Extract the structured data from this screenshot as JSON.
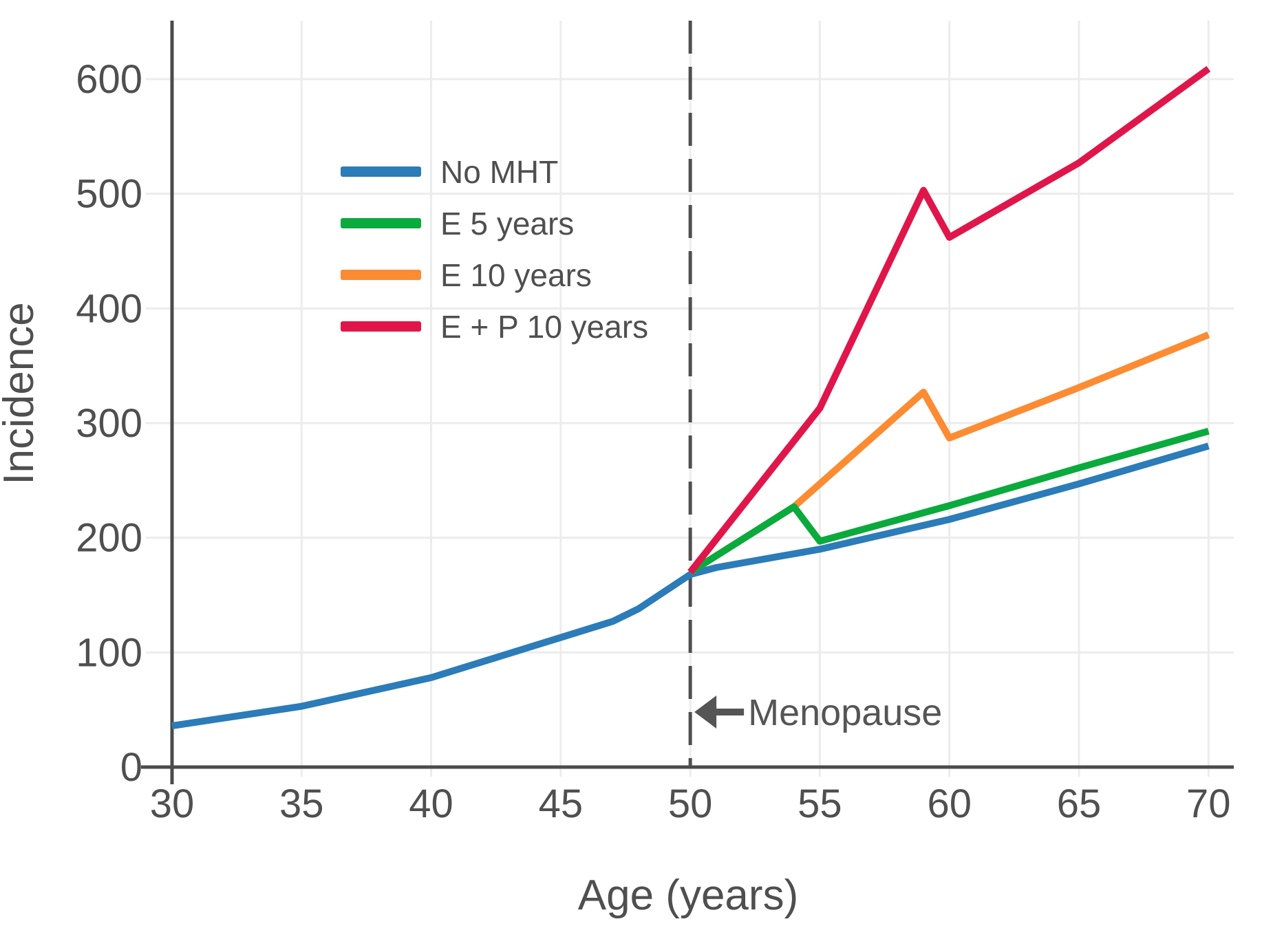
{
  "chart_data": {
    "type": "line",
    "title": "",
    "xlabel": "Age (years)",
    "ylabel": "Incidence",
    "xlim": [
      30,
      71
    ],
    "ylim": [
      0,
      651
    ],
    "x_ticks": [
      30,
      35,
      40,
      45,
      50,
      55,
      60,
      65,
      70
    ],
    "y_ticks": [
      0,
      100,
      200,
      300,
      400,
      500,
      600
    ],
    "grid": true,
    "legend_position": "upper-left-inside",
    "reference_line": {
      "x": 50,
      "style": "dashed",
      "color": "#4f4f4f"
    },
    "annotations": [
      {
        "label": "Menopause",
        "x": 50,
        "y": 48,
        "arrow": "left",
        "color": "#555555"
      }
    ],
    "series": [
      {
        "name": "No MHT",
        "color": "#2b7cb8",
        "points": [
          [
            30,
            36
          ],
          [
            35,
            53
          ],
          [
            40,
            78
          ],
          [
            45,
            113
          ],
          [
            47,
            127
          ],
          [
            48,
            138
          ],
          [
            49,
            153
          ],
          [
            50,
            168
          ],
          [
            51,
            174
          ],
          [
            55,
            190
          ],
          [
            60,
            216
          ],
          [
            65,
            247
          ],
          [
            70,
            280
          ]
        ]
      },
      {
        "name": "E 5 years",
        "color": "#0aaa3d",
        "points": [
          [
            50,
            170
          ],
          [
            54,
            227
          ],
          [
            55,
            197
          ],
          [
            60,
            228
          ],
          [
            65,
            261
          ],
          [
            70,
            293
          ]
        ]
      },
      {
        "name": "E 10 years",
        "color": "#fd8b32",
        "points": [
          [
            50,
            170
          ],
          [
            54,
            227
          ],
          [
            59,
            327
          ],
          [
            60,
            287
          ],
          [
            65,
            331
          ],
          [
            70,
            377
          ]
        ]
      },
      {
        "name": "E + P 10 years",
        "color": "#e0164a",
        "points": [
          [
            50,
            170
          ],
          [
            55,
            313
          ],
          [
            59,
            503
          ],
          [
            60,
            462
          ],
          [
            65,
            527
          ],
          [
            70,
            609
          ]
        ]
      }
    ],
    "colors": {
      "axis": "#4b4b4b",
      "grid": "#ececec",
      "text": "#4f4f4f"
    }
  }
}
